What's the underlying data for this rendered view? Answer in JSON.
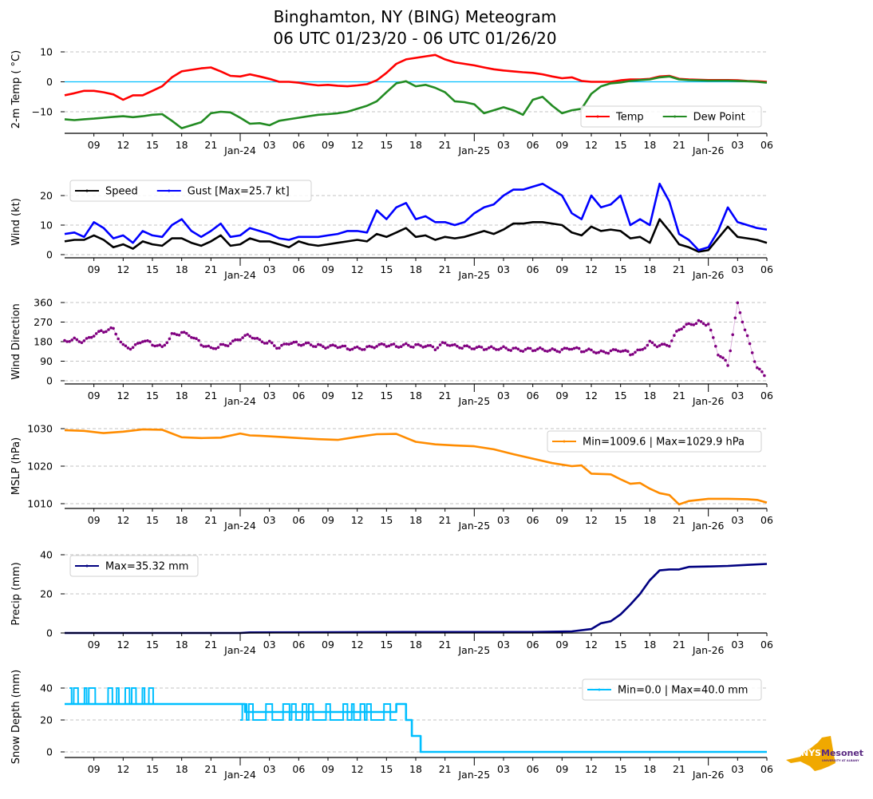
{
  "title_line1": "Binghamton, NY (BING) Meteogram",
  "title_line2": "06 UTC 01/23/20 - 06 UTC 01/26/20",
  "logo": {
    "primary": "NYS",
    "secondary": "Mesonet",
    "subtitle": "UNIVERSITY AT ALBANY"
  },
  "x_axis": {
    "start_hour": 0,
    "end_hour": 72,
    "hour_ticks": [
      {
        "h": 3,
        "label": "09"
      },
      {
        "h": 6,
        "label": "12"
      },
      {
        "h": 9,
        "label": "15"
      },
      {
        "h": 12,
        "label": "18"
      },
      {
        "h": 15,
        "label": "21"
      },
      {
        "h": 21,
        "label": "03"
      },
      {
        "h": 24,
        "label": "06"
      },
      {
        "h": 27,
        "label": "09"
      },
      {
        "h": 30,
        "label": "12"
      },
      {
        "h": 33,
        "label": "15"
      },
      {
        "h": 36,
        "label": "18"
      },
      {
        "h": 39,
        "label": "21"
      },
      {
        "h": 45,
        "label": "03"
      },
      {
        "h": 48,
        "label": "06"
      },
      {
        "h": 51,
        "label": "09"
      },
      {
        "h": 54,
        "label": "12"
      },
      {
        "h": 57,
        "label": "15"
      },
      {
        "h": 60,
        "label": "18"
      },
      {
        "h": 63,
        "label": "21"
      },
      {
        "h": 69,
        "label": "03"
      },
      {
        "h": 72,
        "label": "06"
      }
    ],
    "day_ticks": [
      {
        "h": 18,
        "label": "Jan-24"
      },
      {
        "h": 42,
        "label": "Jan-25"
      },
      {
        "h": 66,
        "label": "Jan-26"
      }
    ]
  },
  "chart_data": [
    {
      "type": "line",
      "id": "temp",
      "ylabel": "2-m Temp ($^\\circ$C)",
      "ylabel_display": "2-m Temp ( °C)",
      "yticks": [
        {
          "v": 10,
          "label": "10"
        },
        {
          "v": 0,
          "label": "0"
        },
        {
          "v": -10,
          "label": "−10"
        }
      ],
      "ylim": [
        -17.5,
        11
      ],
      "zero_line": {
        "value": 0,
        "color": "#00bfff"
      },
      "legend": {
        "placement": "lower-right",
        "ncol": 2
      },
      "x_hours": [
        0,
        1,
        2,
        3,
        4,
        5,
        6,
        7,
        8,
        9,
        10,
        11,
        12,
        13,
        14,
        15,
        16,
        17,
        18,
        19,
        20,
        21,
        22,
        23,
        24,
        25,
        26,
        27,
        28,
        29,
        30,
        31,
        32,
        33,
        34,
        35,
        36,
        37,
        38,
        39,
        40,
        41,
        42,
        43,
        44,
        45,
        46,
        47,
        48,
        49,
        50,
        51,
        52,
        53,
        54,
        55,
        56,
        57,
        58,
        59,
        60,
        61,
        62,
        63,
        64,
        65,
        66,
        67,
        68,
        69,
        70,
        71,
        72
      ],
      "series": [
        {
          "name": "Temp",
          "color": "#ff0000",
          "values": [
            -4.5,
            -3.8,
            -3.0,
            -3.0,
            -3.5,
            -4.2,
            -6.0,
            -4.5,
            -4.5,
            -3.0,
            -1.5,
            1.5,
            3.5,
            4.0,
            4.5,
            4.8,
            3.5,
            2.0,
            1.8,
            2.5,
            1.8,
            1.0,
            0.0,
            0.0,
            -0.3,
            -0.8,
            -1.2,
            -1.0,
            -1.3,
            -1.5,
            -1.2,
            -0.8,
            0.5,
            3.0,
            6.0,
            7.5,
            8.0,
            8.5,
            9.0,
            7.5,
            6.5,
            6.0,
            5.5,
            4.8,
            4.2,
            3.8,
            3.5,
            3.2,
            3.0,
            2.5,
            1.8,
            1.2,
            1.5,
            0.3,
            0.0,
            0.0,
            0.0,
            0.5,
            0.8,
            0.8,
            1.0,
            1.8,
            2.0,
            1.0,
            0.8,
            0.7,
            0.6,
            0.6,
            0.6,
            0.5,
            0.3,
            0.2,
            0.0
          ]
        },
        {
          "name": "Dew Point",
          "color": "#228b22",
          "values": [
            -12.5,
            -12.8,
            -12.5,
            -12.3,
            -12.0,
            -11.7,
            -11.5,
            -11.8,
            -11.5,
            -11.0,
            -10.8,
            -13.0,
            -15.5,
            -14.5,
            -13.5,
            -10.5,
            -10.0,
            -10.2,
            -12.0,
            -14.0,
            -13.8,
            -14.5,
            -13.0,
            -12.5,
            -12.0,
            -11.5,
            -11.0,
            -10.8,
            -10.5,
            -10.0,
            -9.0,
            -8.0,
            -6.5,
            -3.5,
            -0.5,
            0.2,
            -1.5,
            -1.0,
            -2.0,
            -3.5,
            -6.5,
            -6.8,
            -7.5,
            -10.5,
            -9.5,
            -8.5,
            -9.5,
            -11.0,
            -6.0,
            -5.0,
            -8.0,
            -10.5,
            -9.5,
            -9.0,
            -4.0,
            -1.5,
            -0.5,
            -0.2,
            0.3,
            0.6,
            0.8,
            1.5,
            1.8,
            0.8,
            0.6,
            0.5,
            0.4,
            0.4,
            0.4,
            0.3,
            0.2,
            0.0,
            -0.3
          ]
        }
      ]
    },
    {
      "type": "line",
      "id": "wind",
      "ylabel": "Wind (kt)",
      "yticks": [
        {
          "v": 20,
          "label": "20"
        },
        {
          "v": 10,
          "label": "10"
        },
        {
          "v": 0,
          "label": "0"
        }
      ],
      "ylim": [
        -0.5,
        26.5
      ],
      "legend": {
        "placement": "upper-left",
        "ncol": 2
      },
      "x_hours": [
        0,
        1,
        2,
        3,
        4,
        5,
        6,
        7,
        8,
        9,
        10,
        11,
        12,
        13,
        14,
        15,
        16,
        17,
        18,
        19,
        20,
        21,
        22,
        23,
        24,
        25,
        26,
        27,
        28,
        29,
        30,
        31,
        32,
        33,
        34,
        35,
        36,
        37,
        38,
        39,
        40,
        41,
        42,
        43,
        44,
        45,
        46,
        47,
        48,
        49,
        50,
        51,
        52,
        53,
        54,
        55,
        56,
        57,
        58,
        59,
        60,
        61,
        62,
        63,
        64,
        65,
        66,
        67,
        68,
        69,
        70,
        71,
        72
      ],
      "series": [
        {
          "name": "Speed",
          "color": "#000000",
          "values": [
            4.5,
            5.0,
            5.0,
            6.5,
            5.0,
            2.5,
            3.5,
            2.0,
            4.5,
            3.5,
            3.0,
            5.5,
            5.5,
            4.0,
            3.0,
            4.5,
            6.5,
            3.0,
            3.5,
            5.5,
            4.5,
            4.5,
            3.5,
            2.5,
            4.5,
            3.5,
            3.0,
            3.5,
            4.0,
            4.5,
            5.0,
            4.5,
            7.0,
            6.0,
            7.5,
            9.0,
            6.0,
            6.5,
            5.0,
            6.0,
            5.5,
            6.0,
            7.0,
            8.0,
            7.0,
            8.5,
            10.5,
            10.5,
            11.0,
            11.0,
            10.5,
            10.0,
            7.5,
            6.5,
            9.5,
            8.0,
            8.5,
            8.0,
            5.5,
            6.0,
            4.0,
            12.0,
            8.0,
            3.5,
            2.5,
            1.0,
            1.5,
            5.5,
            9.5,
            6.0,
            5.5,
            5.0,
            4.0
          ]
        },
        {
          "name": "Gust [Max=25.7 kt]",
          "color": "#0000ff",
          "values": [
            7.0,
            7.5,
            6.0,
            11.0,
            9.0,
            5.5,
            6.5,
            4.0,
            8.0,
            6.5,
            6.0,
            10.0,
            12.0,
            8.0,
            6.0,
            8.0,
            10.5,
            6.0,
            6.5,
            9.0,
            8.0,
            7.0,
            5.5,
            5.0,
            6.0,
            6.0,
            6.0,
            6.5,
            7.0,
            8.0,
            8.0,
            7.5,
            15.0,
            12.0,
            16.0,
            17.5,
            12.0,
            13.0,
            11.0,
            11.0,
            10.0,
            11.0,
            14.0,
            16.0,
            17.0,
            20.0,
            22.0,
            22.0,
            23.0,
            24.0,
            22.0,
            20.0,
            14.0,
            12.0,
            20.0,
            16.0,
            17.0,
            20.0,
            10.0,
            12.0,
            10.0,
            24.0,
            18.0,
            7.0,
            5.0,
            1.5,
            2.5,
            8.0,
            16.0,
            11.0,
            10.0,
            9.0,
            8.5
          ]
        }
      ]
    },
    {
      "type": "scatter",
      "id": "wdir",
      "ylabel": "Wind Direction",
      "yticks": [
        {
          "v": 360,
          "label": "360"
        },
        {
          "v": 270,
          "label": "270"
        },
        {
          "v": 180,
          "label": "180"
        },
        {
          "v": 90,
          "label": "90"
        },
        {
          "v": 0,
          "label": "0"
        }
      ],
      "ylim": [
        -10,
        370
      ],
      "x_hours": [
        0,
        1,
        2,
        3,
        4,
        5,
        6,
        7,
        8,
        9,
        10,
        11,
        12,
        13,
        14,
        15,
        16,
        17,
        18,
        19,
        20,
        21,
        22,
        23,
        24,
        25,
        26,
        27,
        28,
        29,
        30,
        31,
        32,
        33,
        34,
        35,
        36,
        37,
        38,
        39,
        40,
        41,
        42,
        43,
        44,
        45,
        46,
        47,
        48,
        49,
        50,
        51,
        52,
        53,
        54,
        55,
        56,
        57,
        58,
        59,
        60,
        61,
        62,
        63,
        64,
        65,
        66,
        67,
        68,
        69,
        70,
        71,
        72
      ],
      "series": [
        {
          "name": "Wind Direction",
          "color": "#800080",
          "values": [
            185,
            190,
            180,
            210,
            230,
            240,
            160,
            150,
            185,
            170,
            155,
            210,
            220,
            205,
            170,
            150,
            160,
            170,
            195,
            210,
            185,
            175,
            150,
            175,
            170,
            170,
            160,
            155,
            160,
            150,
            150,
            150,
            160,
            165,
            160,
            165,
            160,
            160,
            150,
            175,
            160,
            155,
            150,
            150,
            150,
            150,
            145,
            140,
            145,
            145,
            140,
            140,
            150,
            140,
            140,
            130,
            135,
            140,
            125,
            140,
            175,
            160,
            165,
            240,
            260,
            270,
            260,
            125,
            75,
            355,
            200,
            60,
            10
          ]
        },
        {
          "name": "Wind Direction tail",
          "color": "#800080",
          "values": []
        }
      ]
    },
    {
      "type": "line",
      "id": "mslp",
      "ylabel": "MSLP (hPa)",
      "yticks": [
        {
          "v": 1030,
          "label": "1030"
        },
        {
          "v": 1020,
          "label": "1020"
        },
        {
          "v": 1010,
          "label": "1010"
        }
      ],
      "ylim": [
        1008.5,
        1031
      ],
      "legend": {
        "placement": "upper-right",
        "ncol": 1
      },
      "x_hours": [
        0,
        2,
        4,
        6,
        8,
        10,
        12,
        14,
        16,
        18,
        19,
        20,
        22,
        24,
        26,
        28,
        30,
        32,
        34,
        36,
        38,
        40,
        42,
        44,
        46,
        48,
        50,
        52,
        53,
        54,
        56,
        57,
        58,
        59,
        60,
        61,
        62,
        63,
        64,
        66,
        68,
        70,
        71,
        72
      ],
      "series": [
        {
          "name": "Min=1009.6 | Max=1029.9 hPa",
          "color": "#ff8c00",
          "values": [
            1029.6,
            1029.4,
            1028.8,
            1029.2,
            1029.8,
            1029.7,
            1027.7,
            1027.5,
            1027.6,
            1028.7,
            1028.2,
            1028.1,
            1027.8,
            1027.5,
            1027.2,
            1027.0,
            1027.8,
            1028.5,
            1028.6,
            1026.5,
            1025.8,
            1025.5,
            1025.3,
            1024.5,
            1023.2,
            1022.0,
            1020.8,
            1020.0,
            1020.2,
            1018.0,
            1017.8,
            1016.5,
            1015.3,
            1015.5,
            1014.0,
            1012.8,
            1012.3,
            1009.8,
            1010.7,
            1011.3,
            1011.3,
            1011.2,
            1011.0,
            1010.3
          ]
        }
      ]
    },
    {
      "type": "line",
      "id": "precip",
      "ylabel": "Precip (mm)",
      "yticks": [
        {
          "v": 40,
          "label": "40"
        },
        {
          "v": 20,
          "label": "20"
        },
        {
          "v": 0,
          "label": "0"
        }
      ],
      "ylim": [
        -0.5,
        41
      ],
      "legend": {
        "placement": "upper-left",
        "ncol": 1
      },
      "x_hours": [
        0,
        18,
        19,
        36,
        48,
        52,
        54,
        55,
        56,
        57,
        58,
        59,
        60,
        61,
        62,
        63,
        64,
        66,
        68,
        70,
        72
      ],
      "series": [
        {
          "name": "Max=35.32 mm",
          "color": "#000080",
          "values": [
            0,
            0,
            0.3,
            0.5,
            0.5,
            0.8,
            2.0,
            5.0,
            6.0,
            9.5,
            14.5,
            20.0,
            27.0,
            32.0,
            32.5,
            32.5,
            33.8,
            34.0,
            34.3,
            34.8,
            35.3
          ]
        }
      ]
    },
    {
      "type": "line",
      "id": "snow",
      "ylabel": "Snow Depth (mm)",
      "yticks": [
        {
          "v": 40,
          "label": "40"
        },
        {
          "v": 20,
          "label": "20"
        },
        {
          "v": 0,
          "label": "0"
        }
      ],
      "ylim": [
        -2.5,
        44
      ],
      "legend": {
        "placement": "upper-right",
        "ncol": 1
      },
      "step": true,
      "x_hours": [
        0,
        10,
        10.5,
        18,
        18.5,
        34,
        35,
        35.6,
        36.5,
        72
      ],
      "series": [
        {
          "name": "Min=0.0 | Max=40.0 mm",
          "color": "#00bfff",
          "values": [
            30,
            30,
            30,
            30,
            25,
            30,
            20,
            10,
            0,
            0
          ]
        }
      ],
      "oscillation_bands": [
        {
          "from_hour": 0.5,
          "to_hour": 10,
          "low": 30,
          "high": 40
        },
        {
          "from_hour": 18,
          "to_hour": 34,
          "low": 20,
          "high": 30
        }
      ]
    }
  ]
}
